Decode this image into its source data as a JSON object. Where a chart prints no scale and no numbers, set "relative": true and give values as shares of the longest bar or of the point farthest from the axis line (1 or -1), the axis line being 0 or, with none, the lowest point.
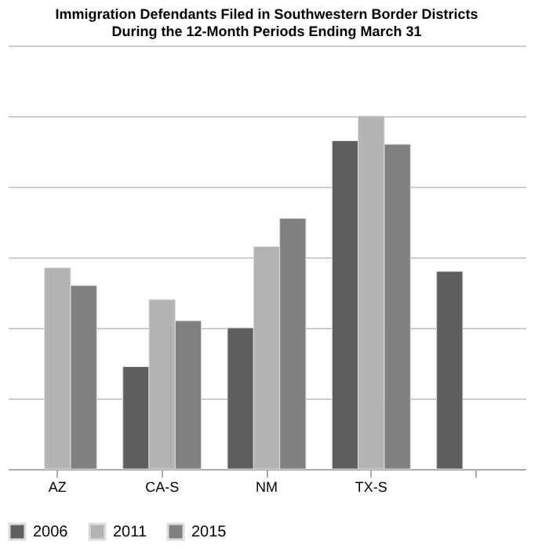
{
  "chart_data": {
    "type": "bar",
    "title": [
      "Immigration Defendants Filed in Southwestern Border Districts",
      "During the 12-Month Periods Ending March 31"
    ],
    "categories": [
      "AZ",
      "CA-S",
      "NM",
      "TX-S",
      null
    ],
    "relative": true,
    "grid": "y",
    "legend": "bottom",
    "series": [
      {
        "name": "2006",
        "color": "#5f5f5f",
        "values": [
          null,
          0.29,
          0.4,
          0.93,
          0.56
        ]
      },
      {
        "name": "2011",
        "color": "#b3b3b3",
        "values": [
          0.57,
          0.48,
          0.63,
          1,
          null
        ]
      },
      {
        "name": "2015",
        "color": "#808080",
        "values": [
          0.52,
          0.42,
          0.71,
          0.92,
          null
        ]
      }
    ]
  }
}
